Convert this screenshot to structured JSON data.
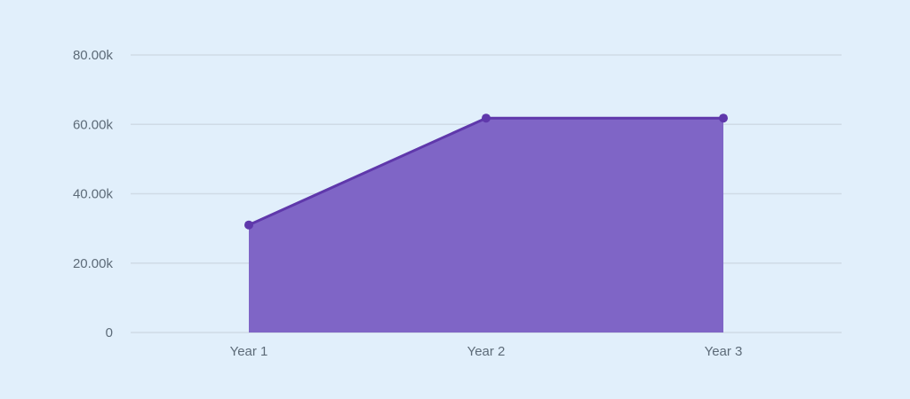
{
  "chart_data": {
    "type": "area",
    "title": "",
    "xlabel": "",
    "ylabel": "",
    "categories": [
      "Year 1",
      "Year 2",
      "Year 3"
    ],
    "series": [
      {
        "values": [
          31000,
          61800,
          61800
        ]
      }
    ],
    "ylim": [
      0,
      80000
    ],
    "yticks": [
      {
        "value": 0,
        "label": "0"
      },
      {
        "value": 20000,
        "label": "20.00k"
      },
      {
        "value": 40000,
        "label": "40.00k"
      },
      {
        "value": 60000,
        "label": "60.00k"
      },
      {
        "value": 80000,
        "label": "80.00k"
      }
    ],
    "grid": true,
    "legend": "none",
    "colors": {
      "area": "#7f65c6",
      "line": "#5f38ab",
      "background": "#e1effb"
    }
  }
}
